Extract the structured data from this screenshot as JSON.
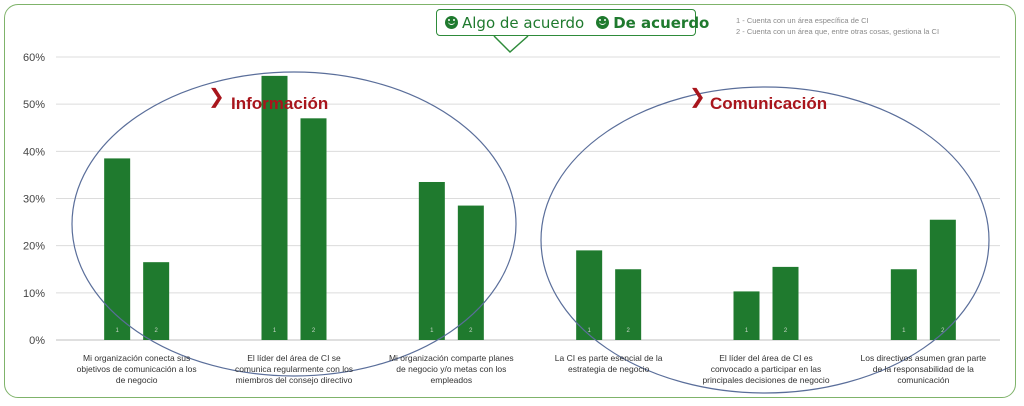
{
  "legend": {
    "items": [
      {
        "label": "Algo de acuerdo",
        "icon": "smiley-icon"
      },
      {
        "label": "De acuerdo",
        "icon": "smiley-icon"
      }
    ]
  },
  "notes": [
    "1 - Cuenta con un área específica de CI",
    "2 - Cuenta con un área que, entre otras cosas, gestiona la CI"
  ],
  "groups": {
    "informacion": "Información",
    "comunicacion": "Comunicación"
  },
  "colors": {
    "bar": "#1f7a2e",
    "grid": "#dcdcdc",
    "accent": "#a8151c",
    "ellipse": "#5a6e9a"
  },
  "chart_data": {
    "type": "bar",
    "ylim": [
      0,
      0.6
    ],
    "yticks": [
      "0%",
      "10%",
      "20%",
      "30%",
      "40%",
      "50%",
      "60%"
    ],
    "grid": true,
    "categories": [
      "Mi organización conecta sus objetivos de comunicación a los de negocio",
      "El líder del área de CI se comunica regularmente con los miembros del consejo directivo",
      "Mi organización comparte planes de negocio y/o metas con los empleados",
      "La CI es parte esencial de la estrategia de negocio",
      "El líder del área de CI es convocado a participar en las principales decisiones de negocio",
      "Los directivos asumen gran parte de la responsabilidad de la comunicación"
    ],
    "bar_labels": [
      "1",
      "2"
    ],
    "values": [
      [
        0.385,
        0.165
      ],
      [
        0.56,
        0.47
      ],
      [
        0.335,
        0.285
      ],
      [
        0.19,
        0.15
      ],
      [
        0.103,
        0.155
      ],
      [
        0.15,
        0.255
      ]
    ]
  }
}
